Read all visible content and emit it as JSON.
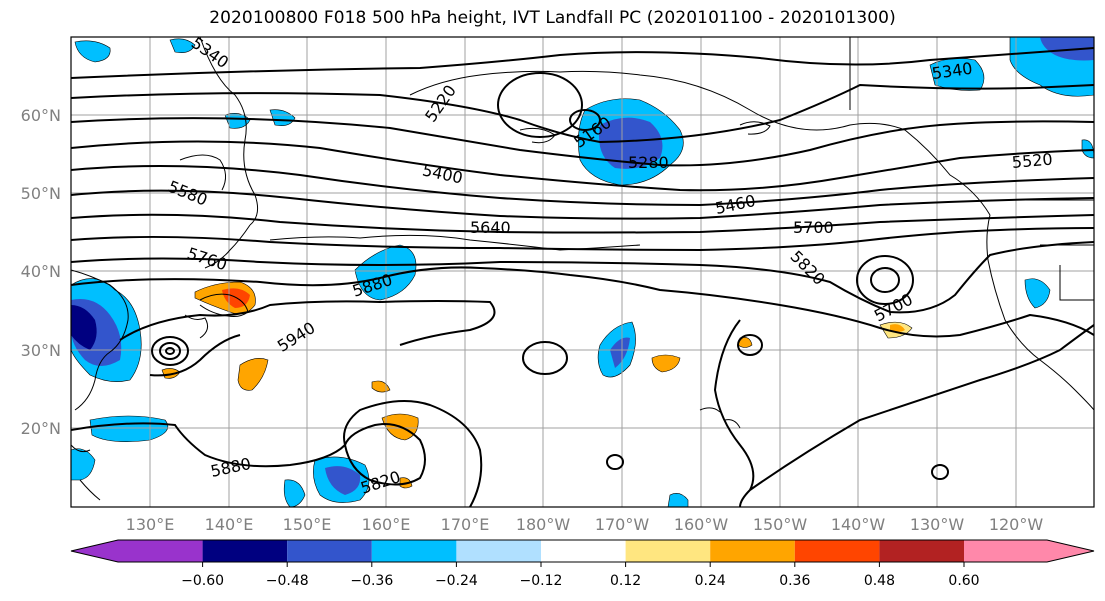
{
  "title": "2020100800 F018 500 hPa height, IVT Landfall PC (2020101100 - 2020101300)",
  "lat_labels": [
    "60°N",
    "50°N",
    "40°N",
    "30°N",
    "20°N"
  ],
  "lon_labels": [
    "130°E",
    "140°E",
    "150°E",
    "160°E",
    "170°E",
    "180°W",
    "170°W",
    "160°W",
    "150°W",
    "140°W",
    "130°W",
    "120°W"
  ],
  "contour_labels": [
    "5340",
    "5220",
    "5160",
    "5280",
    "5400",
    "5580",
    "5640",
    "5460",
    "5520",
    "5340",
    "5700",
    "5760",
    "5880",
    "5820",
    "5940",
    "5700",
    "5880",
    "5820"
  ],
  "colorbar": {
    "colors": [
      "#9933cc",
      "#000080",
      "#3355cc",
      "#00bfff",
      "#b0e0ff",
      "#ffffff",
      "#ffe680",
      "#ffa500",
      "#ff4500",
      "#b22222",
      "#ff88aa"
    ],
    "tick_labels": [
      "−0.60",
      "−0.48",
      "−0.36",
      "−0.24",
      "−0.12",
      "0.12",
      "0.24",
      "0.36",
      "0.48",
      "0.60"
    ]
  }
}
